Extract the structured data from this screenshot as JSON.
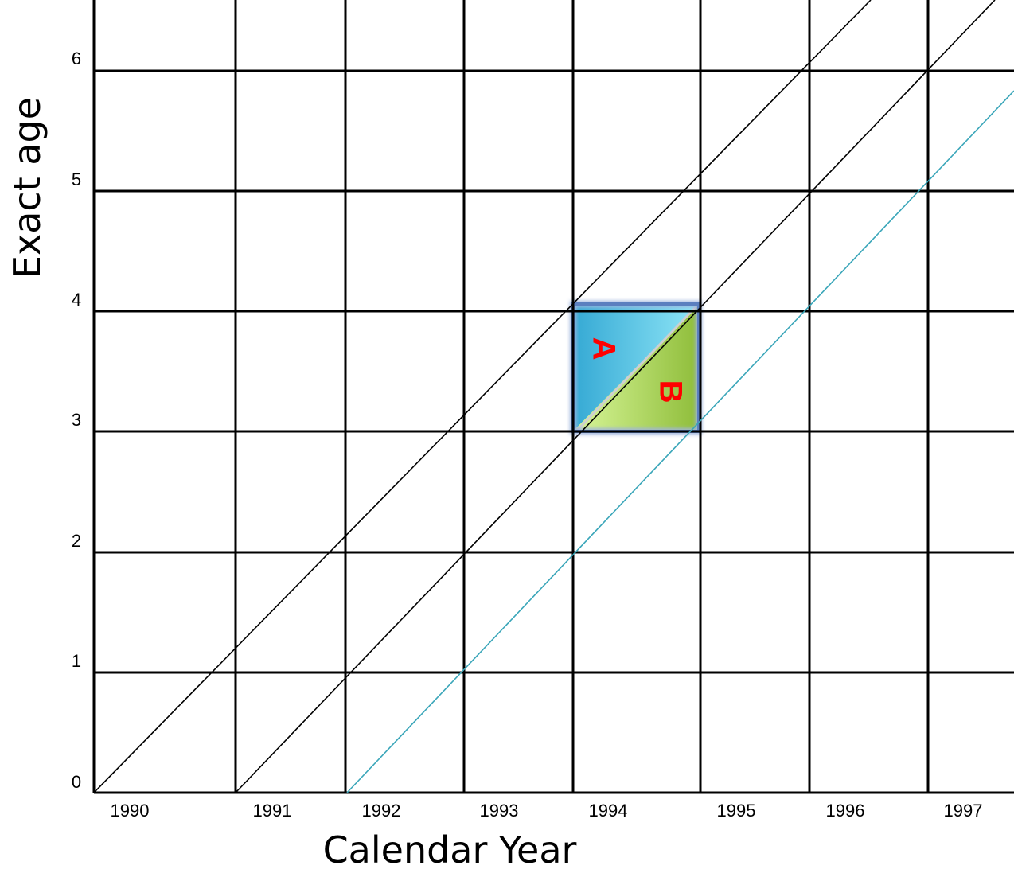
{
  "diagram": {
    "type": "lexis-diagram",
    "x_axis_title": "Calendar Year",
    "y_axis_title": "Exact age",
    "x_tick_labels": [
      "1990",
      "1991",
      "1992",
      "1993",
      "1994",
      "1995",
      "1996",
      "1997"
    ],
    "y_tick_labels": [
      "0",
      "1",
      "2",
      "3",
      "4",
      "5",
      "6"
    ],
    "grid_color": "#000000",
    "lifeline_color": "#000000",
    "highlight_lifeline_color": "#3aa6b9",
    "region_a": {
      "label": "A",
      "color_from": "#35a9d4",
      "color_to": "#8fe6f7",
      "label_color": "#ff0000"
    },
    "region_b": {
      "label": "B",
      "color_from": "#d9f79a",
      "color_to": "#8fbd3a",
      "label_color": "#ff0000"
    },
    "highlight_border_color": "#5b7fbf"
  }
}
